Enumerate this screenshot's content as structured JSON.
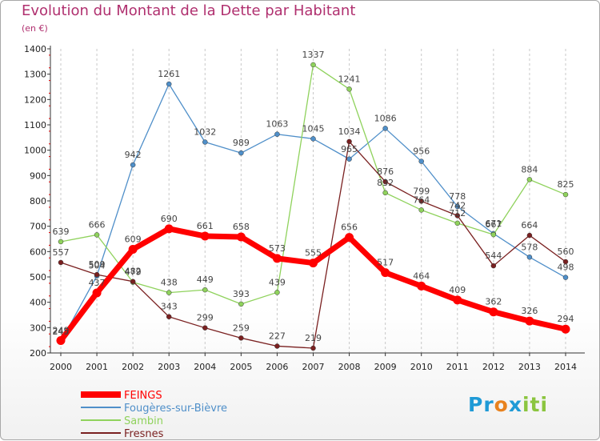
{
  "chart_data": {
    "type": "line",
    "title": "Evolution du Montant de la Dette par Habitant",
    "subtitle": "(en €)",
    "x": [
      "2000",
      "2001",
      "2002",
      "2003",
      "2004",
      "2005",
      "2006",
      "2007",
      "2008",
      "2009",
      "2010",
      "2011",
      "2012",
      "2013",
      "2014"
    ],
    "ylim": [
      200,
      1400
    ],
    "yticks": [
      200,
      300,
      400,
      500,
      600,
      700,
      800,
      900,
      1000,
      1100,
      1200,
      1300,
      1400
    ],
    "grid": "vertical dashed",
    "legend_position": "bottom-left",
    "series": [
      {
        "name": "FEINGS",
        "color": "#ff0000",
        "values": [
          249,
          437,
          609,
          690,
          661,
          658,
          573,
          555,
          656,
          517,
          464,
          409,
          362,
          326,
          294
        ]
      },
      {
        "name": "Fougères-sur-Bièvre",
        "color": "#4f8fc9",
        "values": [
          245,
          504,
          942,
          1261,
          1032,
          989,
          1063,
          1045,
          965,
          1086,
          956,
          778,
          671,
          578,
          498
        ]
      },
      {
        "name": "Sambin",
        "color": "#8fd25c",
        "values": [
          639,
          666,
          479,
          438,
          449,
          393,
          439,
          1337,
          1241,
          832,
          764,
          712,
          667,
          884,
          825
        ]
      },
      {
        "name": "Fresnes",
        "color": "#7a2020",
        "values": [
          557,
          509,
          482,
          343,
          299,
          259,
          227,
          219,
          1034,
          876,
          799,
          742,
          544,
          664,
          560
        ]
      }
    ]
  },
  "logo": {
    "part1": "Pr",
    "part2": "o",
    "part3": "x",
    "part4": "iti"
  }
}
